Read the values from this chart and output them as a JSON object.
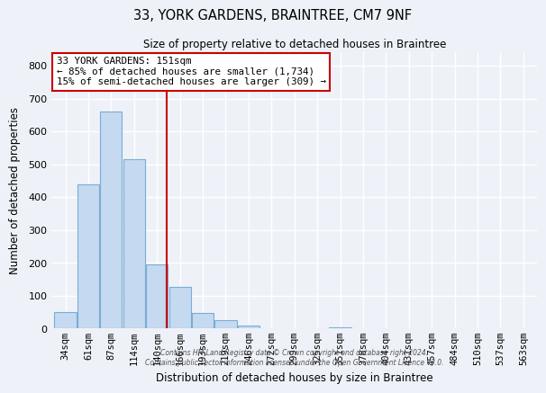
{
  "title": "33, YORK GARDENS, BRAINTREE, CM7 9NF",
  "subtitle": "Size of property relative to detached houses in Braintree",
  "xlabel": "Distribution of detached houses by size in Braintree",
  "ylabel": "Number of detached properties",
  "bar_labels": [
    "34sqm",
    "61sqm",
    "87sqm",
    "114sqm",
    "140sqm",
    "166sqm",
    "193sqm",
    "219sqm",
    "246sqm",
    "272sqm",
    "299sqm",
    "325sqm",
    "351sqm",
    "378sqm",
    "404sqm",
    "431sqm",
    "457sqm",
    "484sqm",
    "510sqm",
    "537sqm",
    "563sqm"
  ],
  "bar_values": [
    50,
    440,
    660,
    515,
    195,
    128,
    48,
    25,
    8,
    0,
    0,
    0,
    5,
    0,
    0,
    0,
    0,
    0,
    0,
    0,
    0
  ],
  "bar_color": "#c5d9f0",
  "bar_edge_color": "#7aadd4",
  "ylim": [
    0,
    840
  ],
  "yticks": [
    0,
    100,
    200,
    300,
    400,
    500,
    600,
    700,
    800
  ],
  "vline_x": 4.42,
  "vline_color": "#cc0000",
  "annotation_title": "33 YORK GARDENS: 151sqm",
  "annotation_line1": "← 85% of detached houses are smaller (1,734)",
  "annotation_line2": "15% of semi-detached houses are larger (309) →",
  "annotation_box_color": "#cc0000",
  "footer_line1": "Contains HM Land Registry data © Crown copyright and database right 2024.",
  "footer_line2": "Contains public sector information licensed under the Open Government Licence v3.0.",
  "background_color": "#eef2f8",
  "grid_color": "#ffffff"
}
